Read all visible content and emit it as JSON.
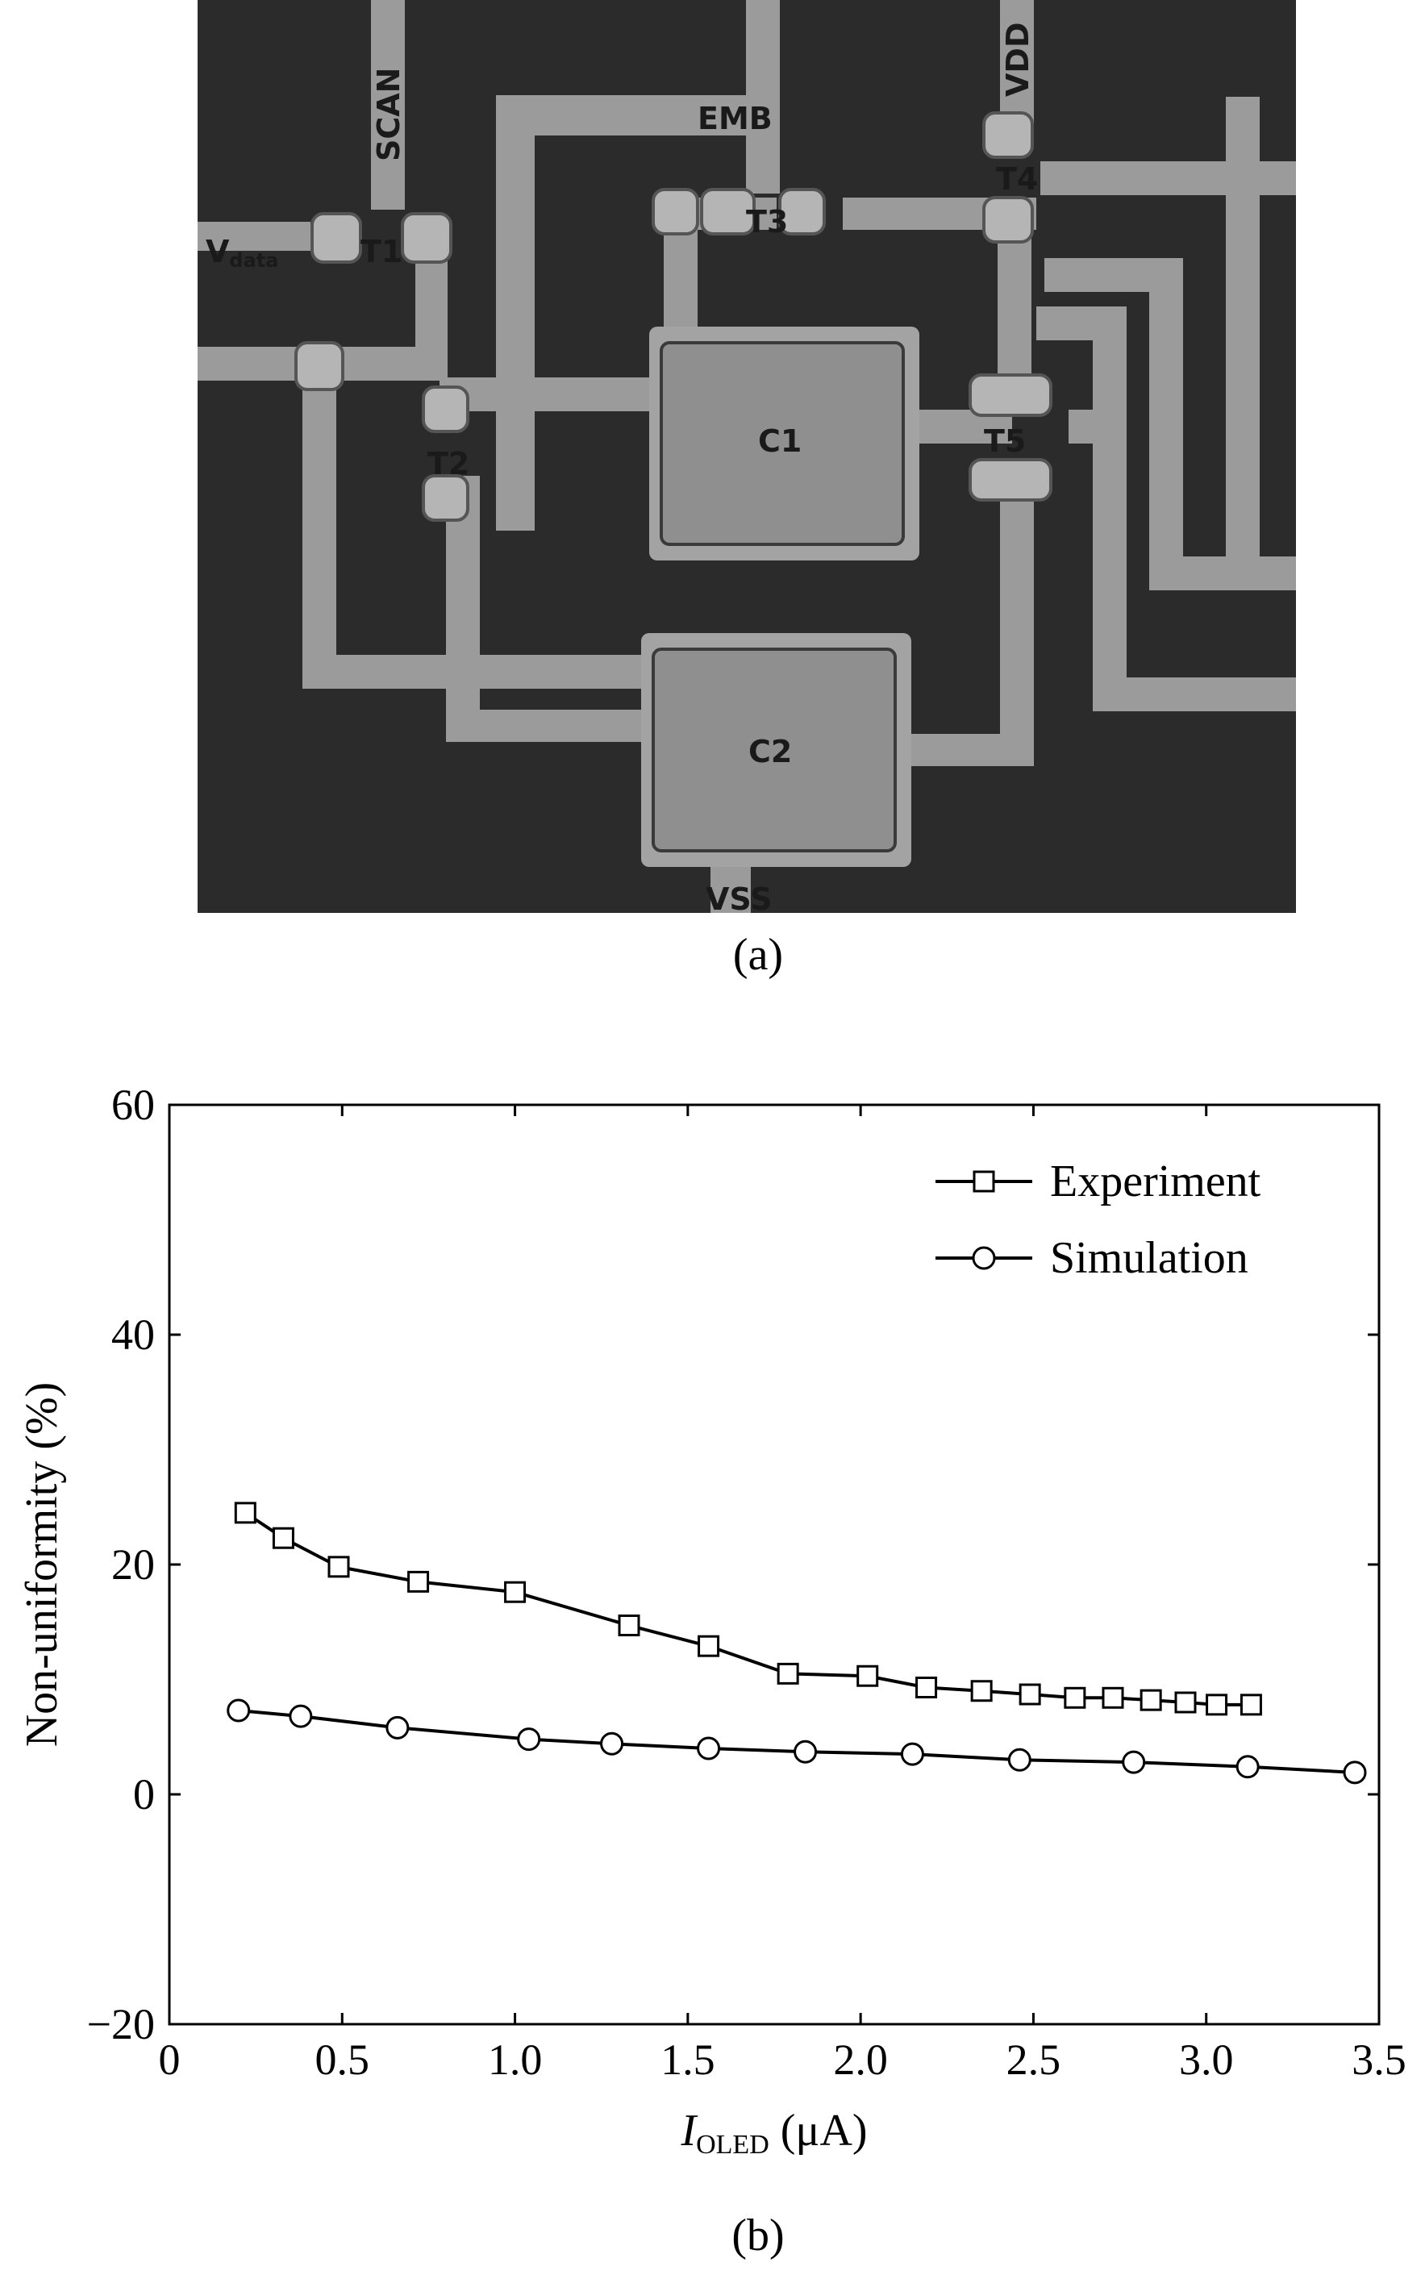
{
  "figure_a": {
    "caption": "(a)",
    "labels": {
      "scan": "SCAN",
      "emb": "EMB",
      "vdd": "VDD",
      "vdata_main": "V",
      "vdata_sub": "data",
      "t1": "T1",
      "t2": "T2",
      "t3": "T3",
      "t4": "T4",
      "t5": "T5",
      "c1": "C1",
      "c2": "C2",
      "vss": "VSS"
    },
    "colors": {
      "background": "#2b2b2b",
      "metal": "#9b9b9b",
      "capacitor": "#8f8f8f",
      "label": "#1a1a1a"
    }
  },
  "figure_b": {
    "caption": "(b)"
  },
  "chart_data": {
    "type": "line",
    "xlabel_main": "I",
    "xlabel_sub": "OLED",
    "xlabel_unit": " (μA)",
    "ylabel": "Non-uniformity (%)",
    "xlim": [
      0,
      3.5
    ],
    "ylim": [
      -20,
      60
    ],
    "x_ticks": [
      0,
      0.5,
      1.0,
      1.5,
      2.0,
      2.5,
      3.0,
      3.5
    ],
    "x_tick_labels": [
      "0",
      "0.5",
      "1.0",
      "1.5",
      "2.0",
      "2.5",
      "3.0",
      "3.5"
    ],
    "y_ticks": [
      -20,
      0,
      20,
      40,
      60
    ],
    "y_tick_labels": [
      "−20",
      "0",
      "20",
      "40",
      "60"
    ],
    "grid": false,
    "legend_position": "top-right",
    "series": [
      {
        "name": "Experiment",
        "marker": "square",
        "x": [
          0.22,
          0.33,
          0.49,
          0.72,
          1.0,
          1.33,
          1.56,
          1.79,
          2.02,
          2.19,
          2.35,
          2.49,
          2.62,
          2.73,
          2.84,
          2.94,
          3.03,
          3.13
        ],
        "y": [
          24.5,
          22.3,
          19.8,
          18.5,
          17.6,
          14.7,
          12.9,
          10.5,
          10.3,
          9.3,
          9.0,
          8.7,
          8.4,
          8.4,
          8.2,
          8.0,
          7.8,
          7.8
        ]
      },
      {
        "name": "Simulation",
        "marker": "circle",
        "x": [
          0.2,
          0.38,
          0.66,
          1.04,
          1.28,
          1.56,
          1.84,
          2.15,
          2.46,
          2.79,
          3.12,
          3.43
        ],
        "y": [
          7.3,
          6.8,
          5.8,
          4.8,
          4.4,
          4.0,
          3.7,
          3.5,
          3.0,
          2.8,
          2.4,
          1.9
        ]
      }
    ],
    "colors": {
      "line": "#000000",
      "marker_fill": "#ffffff"
    }
  }
}
